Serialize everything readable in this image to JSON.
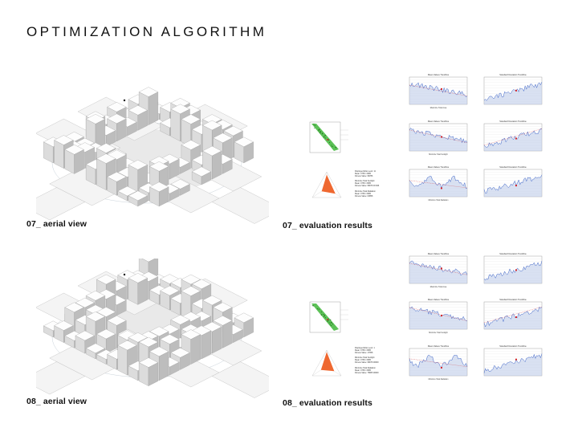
{
  "header": {
    "title": "OPTIMIZATION ALGORITHM"
  },
  "rows": [
    {
      "id": "07",
      "aerial_caption": "07_ aerial view",
      "eval_caption": "07_ evaluation results",
      "seed": 7,
      "info_lines": [
        [
          "Displayed Elite Level: 11",
          "Mean: 0765 / 0685",
          "Fitness Value: 98786"
        ],
        [
          "Minimize Total Sunlight",
          "Mean: 0765 / 0685",
          "Fitness Value: 98978 03 906"
        ],
        [
          "Minimize Total Radiation",
          "Mean: 0765 / 0685",
          "Fitness Value: 00858"
        ]
      ],
      "charts": [
        {
          "title": "Mean Values Trendline",
          "xlabel": "Maximize Total Area"
        },
        {
          "title": "Standard Deviation Trendline",
          "xlabel": ""
        },
        {
          "title": "Mean Values Trendline",
          "xlabel": "Minimize Total Sunlight"
        },
        {
          "title": "Standard Deviation Trendline",
          "xlabel": ""
        },
        {
          "title": "Mean Values Trendline",
          "xlabel": "Minimize Total Radiation"
        },
        {
          "title": "Standard Deviation Trendline",
          "xlabel": ""
        }
      ]
    },
    {
      "id": "08",
      "aerial_caption": "08_ aerial view",
      "eval_caption": "08_ evaluation results",
      "seed": 8,
      "info_lines": [
        [
          "Displayed Elite Level: 1",
          "Mean: 0765 / 0685",
          "Fitness Value: 17958"
        ],
        [
          "Minimize Total Sunlight",
          "Mean: 0765 / 0685",
          "Fitness Value: 98978 00000"
        ],
        [
          "Minimize Total Radiation",
          "Mean: 0765 / 0685",
          "Fitness Value: 78865 00000"
        ]
      ],
      "charts": [
        {
          "title": "Mean Values Trendline",
          "xlabel": "Maximize Total Area"
        },
        {
          "title": "Standard Deviation Trendline",
          "xlabel": ""
        },
        {
          "title": "Mean Values Trendline",
          "xlabel": "Minimize Total Sunlight"
        },
        {
          "title": "Standard Deviation Trendline",
          "xlabel": ""
        },
        {
          "title": "Mean Values Trendline",
          "xlabel": "Minimize Total Radiation"
        },
        {
          "title": "Standard Deviation Trendline",
          "xlabel": ""
        }
      ]
    }
  ],
  "colors": {
    "scatter_fill": "#3fb63a",
    "scatter_point": "#1c6a18",
    "radar_fill": "#ee5b1e",
    "trend_line": "#3d64c8",
    "trend_fill": "#b9c8e8",
    "highlight": "#d5262a"
  }
}
